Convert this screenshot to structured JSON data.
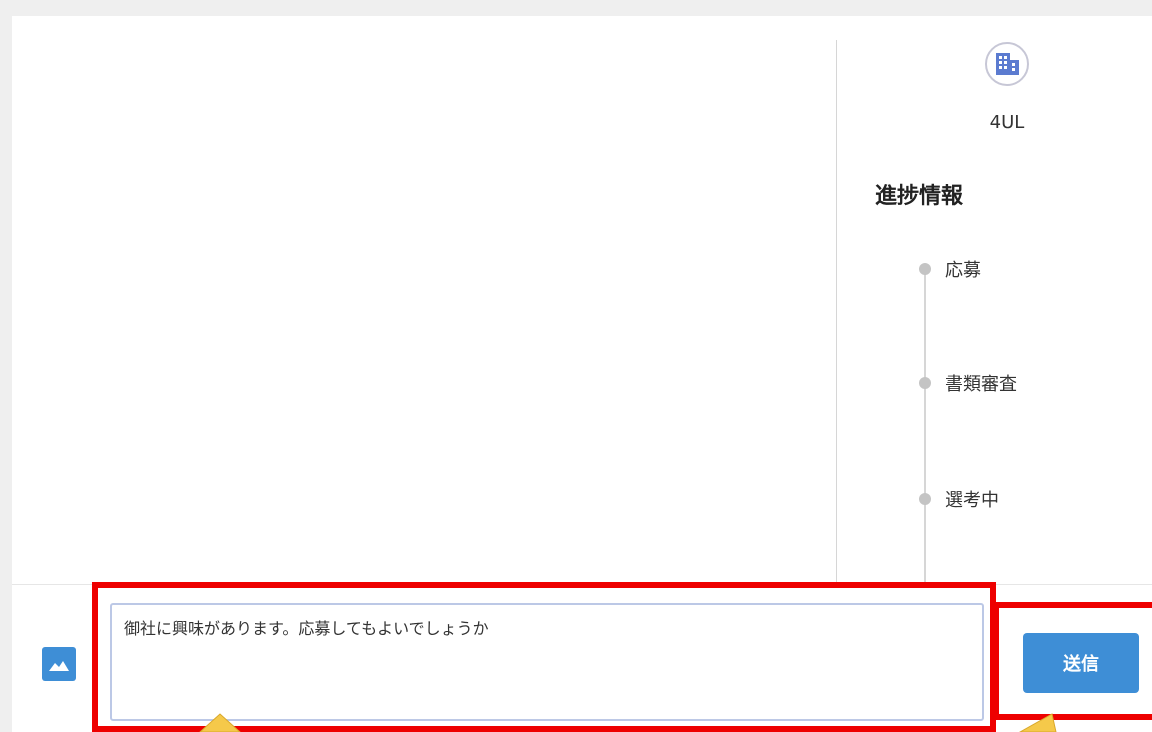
{
  "company": {
    "name": "4UL",
    "icon": "building-icon"
  },
  "progress": {
    "title": "進捗情報",
    "steps": [
      {
        "label": "応募"
      },
      {
        "label": "書類審査"
      },
      {
        "label": "選考中"
      }
    ]
  },
  "composer": {
    "image_icon": "image-icon",
    "message_value": "御社に興味があります。応募してもよいでしょうか",
    "send_label": "送信"
  },
  "colors": {
    "accent": "#3e8ed6",
    "highlight": "#ee0000",
    "annotation_arrow": "#f5c94a"
  }
}
